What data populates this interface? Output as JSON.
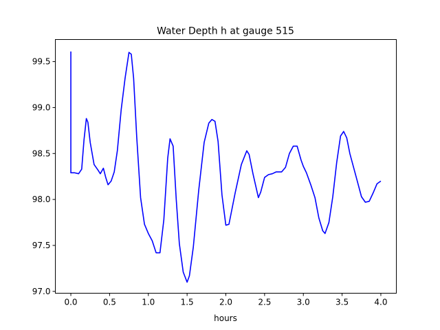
{
  "chart_data": {
    "type": "line",
    "title": "Water Depth h at gauge 515",
    "xlabel": "hours",
    "ylabel": "",
    "xlim": [
      -0.2,
      4.2
    ],
    "ylim": [
      96.98,
      99.74
    ],
    "xticks": [
      0.0,
      0.5,
      1.0,
      1.5,
      2.0,
      2.5,
      3.0,
      3.5,
      4.0
    ],
    "xtick_labels": [
      "0.0",
      "0.5",
      "1.0",
      "1.5",
      "2.0",
      "2.5",
      "3.0",
      "3.5",
      "4.0"
    ],
    "yticks": [
      97.0,
      97.5,
      98.0,
      98.5,
      99.0,
      99.5
    ],
    "ytick_labels": [
      "97.0",
      "97.5",
      "98.0",
      "98.5",
      "99.0",
      "99.5"
    ],
    "grid": false,
    "legend": "none",
    "series": [
      {
        "color": "#0000ff",
        "x": [
          0.0,
          0.0,
          0.05,
          0.1,
          0.14,
          0.17,
          0.2,
          0.22,
          0.25,
          0.3,
          0.35,
          0.38,
          0.42,
          0.45,
          0.48,
          0.52,
          0.56,
          0.6,
          0.65,
          0.7,
          0.75,
          0.78,
          0.81,
          0.85,
          0.9,
          0.95,
          1.0,
          1.05,
          1.1,
          1.15,
          1.2,
          1.25,
          1.28,
          1.32,
          1.36,
          1.4,
          1.45,
          1.5,
          1.53,
          1.58,
          1.65,
          1.72,
          1.78,
          1.82,
          1.86,
          1.9,
          1.95,
          2.0,
          2.04,
          2.08,
          2.12,
          2.2,
          2.27,
          2.3,
          2.35,
          2.42,
          2.45,
          2.5,
          2.55,
          2.6,
          2.65,
          2.72,
          2.77,
          2.82,
          2.87,
          2.92,
          2.97,
          3.0,
          3.04,
          3.1,
          3.15,
          3.2,
          3.25,
          3.28,
          3.33,
          3.38,
          3.43,
          3.48,
          3.52,
          3.56,
          3.6,
          3.68,
          3.75,
          3.8,
          3.85,
          3.9,
          3.95,
          4.0
        ],
        "y": [
          99.61,
          98.29,
          98.29,
          98.28,
          98.33,
          98.65,
          98.88,
          98.84,
          98.62,
          98.38,
          98.32,
          98.28,
          98.34,
          98.24,
          98.16,
          98.2,
          98.3,
          98.53,
          98.98,
          99.32,
          99.6,
          99.58,
          99.32,
          98.68,
          98.02,
          97.73,
          97.63,
          97.55,
          97.42,
          97.42,
          97.78,
          98.45,
          98.66,
          98.58,
          98.0,
          97.52,
          97.21,
          97.1,
          97.17,
          97.48,
          98.1,
          98.62,
          98.83,
          98.87,
          98.85,
          98.63,
          98.05,
          97.72,
          97.73,
          97.9,
          98.07,
          98.38,
          98.53,
          98.49,
          98.28,
          98.02,
          98.08,
          98.24,
          98.27,
          98.28,
          98.3,
          98.3,
          98.35,
          98.5,
          98.58,
          98.58,
          98.43,
          98.36,
          98.29,
          98.15,
          98.02,
          97.8,
          97.66,
          97.63,
          97.75,
          98.03,
          98.4,
          98.69,
          98.74,
          98.67,
          98.5,
          98.25,
          98.03,
          97.97,
          97.98,
          98.07,
          98.17,
          98.2
        ]
      }
    ]
  }
}
